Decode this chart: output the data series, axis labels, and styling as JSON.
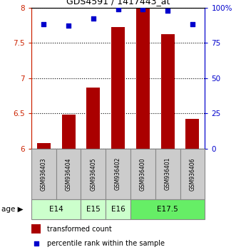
{
  "title": "GDS4591 / 1417443_at",
  "samples": [
    "GSM936403",
    "GSM936404",
    "GSM936405",
    "GSM936402",
    "GSM936400",
    "GSM936401",
    "GSM936406"
  ],
  "transformed_counts": [
    6.08,
    6.48,
    6.87,
    7.72,
    8.0,
    7.62,
    6.42
  ],
  "percentile_ranks": [
    88,
    87,
    92,
    99,
    99,
    98,
    88
  ],
  "age_groups": [
    {
      "label": "E14",
      "start": 0,
      "end": 2,
      "color": "#ccffcc"
    },
    {
      "label": "E15",
      "start": 2,
      "end": 3,
      "color": "#ccffcc"
    },
    {
      "label": "E16",
      "start": 3,
      "end": 4,
      "color": "#ccffcc"
    },
    {
      "label": "E17.5",
      "start": 4,
      "end": 7,
      "color": "#66ee66"
    }
  ],
  "ylim": [
    6.0,
    8.0
  ],
  "yticks": [
    6.0,
    6.5,
    7.0,
    7.5,
    8.0
  ],
  "ytick_labels": [
    "6",
    "6.5",
    "7",
    "7.5",
    "8"
  ],
  "y2ticks": [
    0,
    25,
    50,
    75,
    100
  ],
  "y2tick_labels": [
    "0",
    "25",
    "50",
    "75",
    "100%"
  ],
  "bar_color": "#aa0000",
  "dot_color": "#0000cc",
  "bar_width": 0.55,
  "sample_box_color": "#cccccc",
  "legend_bar_color": "#aa0000",
  "legend_dot_color": "#0000cc",
  "fig_width": 3.38,
  "fig_height": 3.54,
  "dpi": 100
}
